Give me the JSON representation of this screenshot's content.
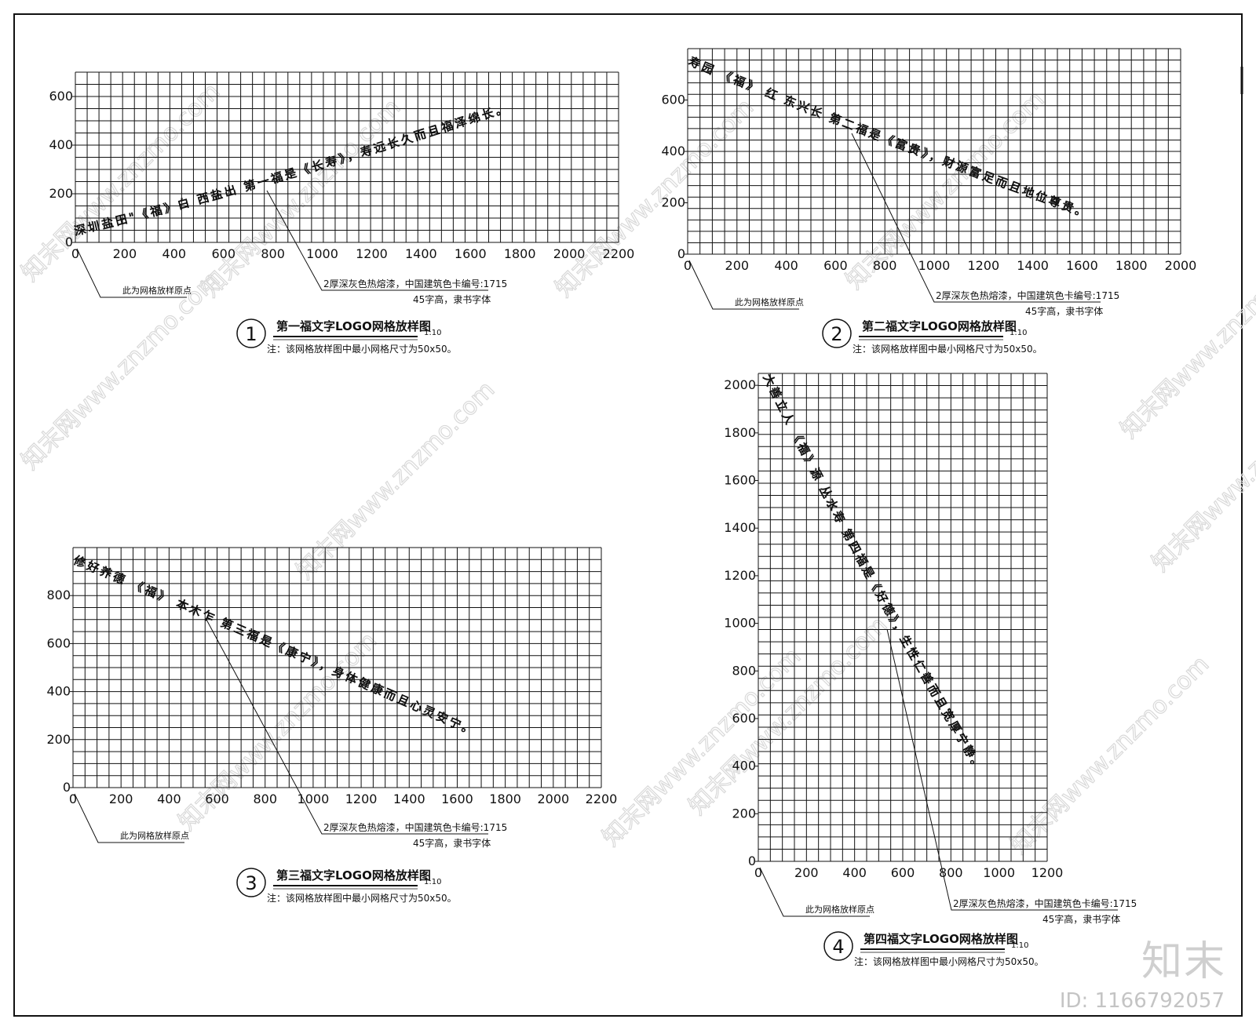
{
  "common": {
    "origin_note": "此为网格放样原点",
    "paint_note": "2厚深灰色热熔漆，中国建筑色卡编号:1715",
    "font_note": "45字高，隶书字体",
    "grid_note": "注：该网格放样图中最小网格尺寸为50x50。",
    "scale": "1:10"
  },
  "panels": [
    {
      "number": "1",
      "title": "第一福文字LOGO网格放样图",
      "curve_text": "深圳盐田\"《福》白 西盐出 第一福是《长寿》，寿远长久而且福泽绵长。",
      "x_ticks": [
        "0",
        "200",
        "400",
        "600",
        "800",
        "1000",
        "1200",
        "1400",
        "1600",
        "1800",
        "2000",
        "2200"
      ],
      "y_ticks": [
        "0",
        "200",
        "400",
        "600"
      ]
    },
    {
      "number": "2",
      "title": "第二福文字LOGO网格放样图",
      "curve_text": "寿园 《福》 红 东兴长 第二福是《富贵》，财源富足而且地位尊贵。",
      "x_ticks": [
        "0",
        "200",
        "400",
        "600",
        "800",
        "1000",
        "1200",
        "1400",
        "1600",
        "1800",
        "2000"
      ],
      "y_ticks": [
        "0",
        "200",
        "400",
        "600"
      ]
    },
    {
      "number": "3",
      "title": "第三福文字LOGO网格放样图",
      "curve_text": "修好养德 《福》 本木乍 第三福是《康宁》，身体健康而且心灵安宁。",
      "x_ticks": [
        "0",
        "200",
        "400",
        "600",
        "800",
        "1000",
        "1200",
        "1400",
        "1600",
        "1800",
        "2000",
        "2200"
      ],
      "y_ticks": [
        "0",
        "200",
        "400",
        "600",
        "800"
      ]
    },
    {
      "number": "4",
      "title": "第四福文字LOGO网格放样图",
      "curve_text": "大善立人 《福》源 丛水寿 第四福是《好德》，生性仁善而且宽厚宁静。",
      "x_ticks": [
        "0",
        "200",
        "400",
        "600",
        "800",
        "1000",
        "1200"
      ],
      "y_ticks": [
        "0",
        "200",
        "400",
        "600",
        "800",
        "1000",
        "1200",
        "1400",
        "1600",
        "1800",
        "2000"
      ]
    }
  ],
  "watermark": {
    "text": "知末网www.znzmo.com",
    "brand": "知末",
    "id_label": "ID: 1166792057"
  }
}
